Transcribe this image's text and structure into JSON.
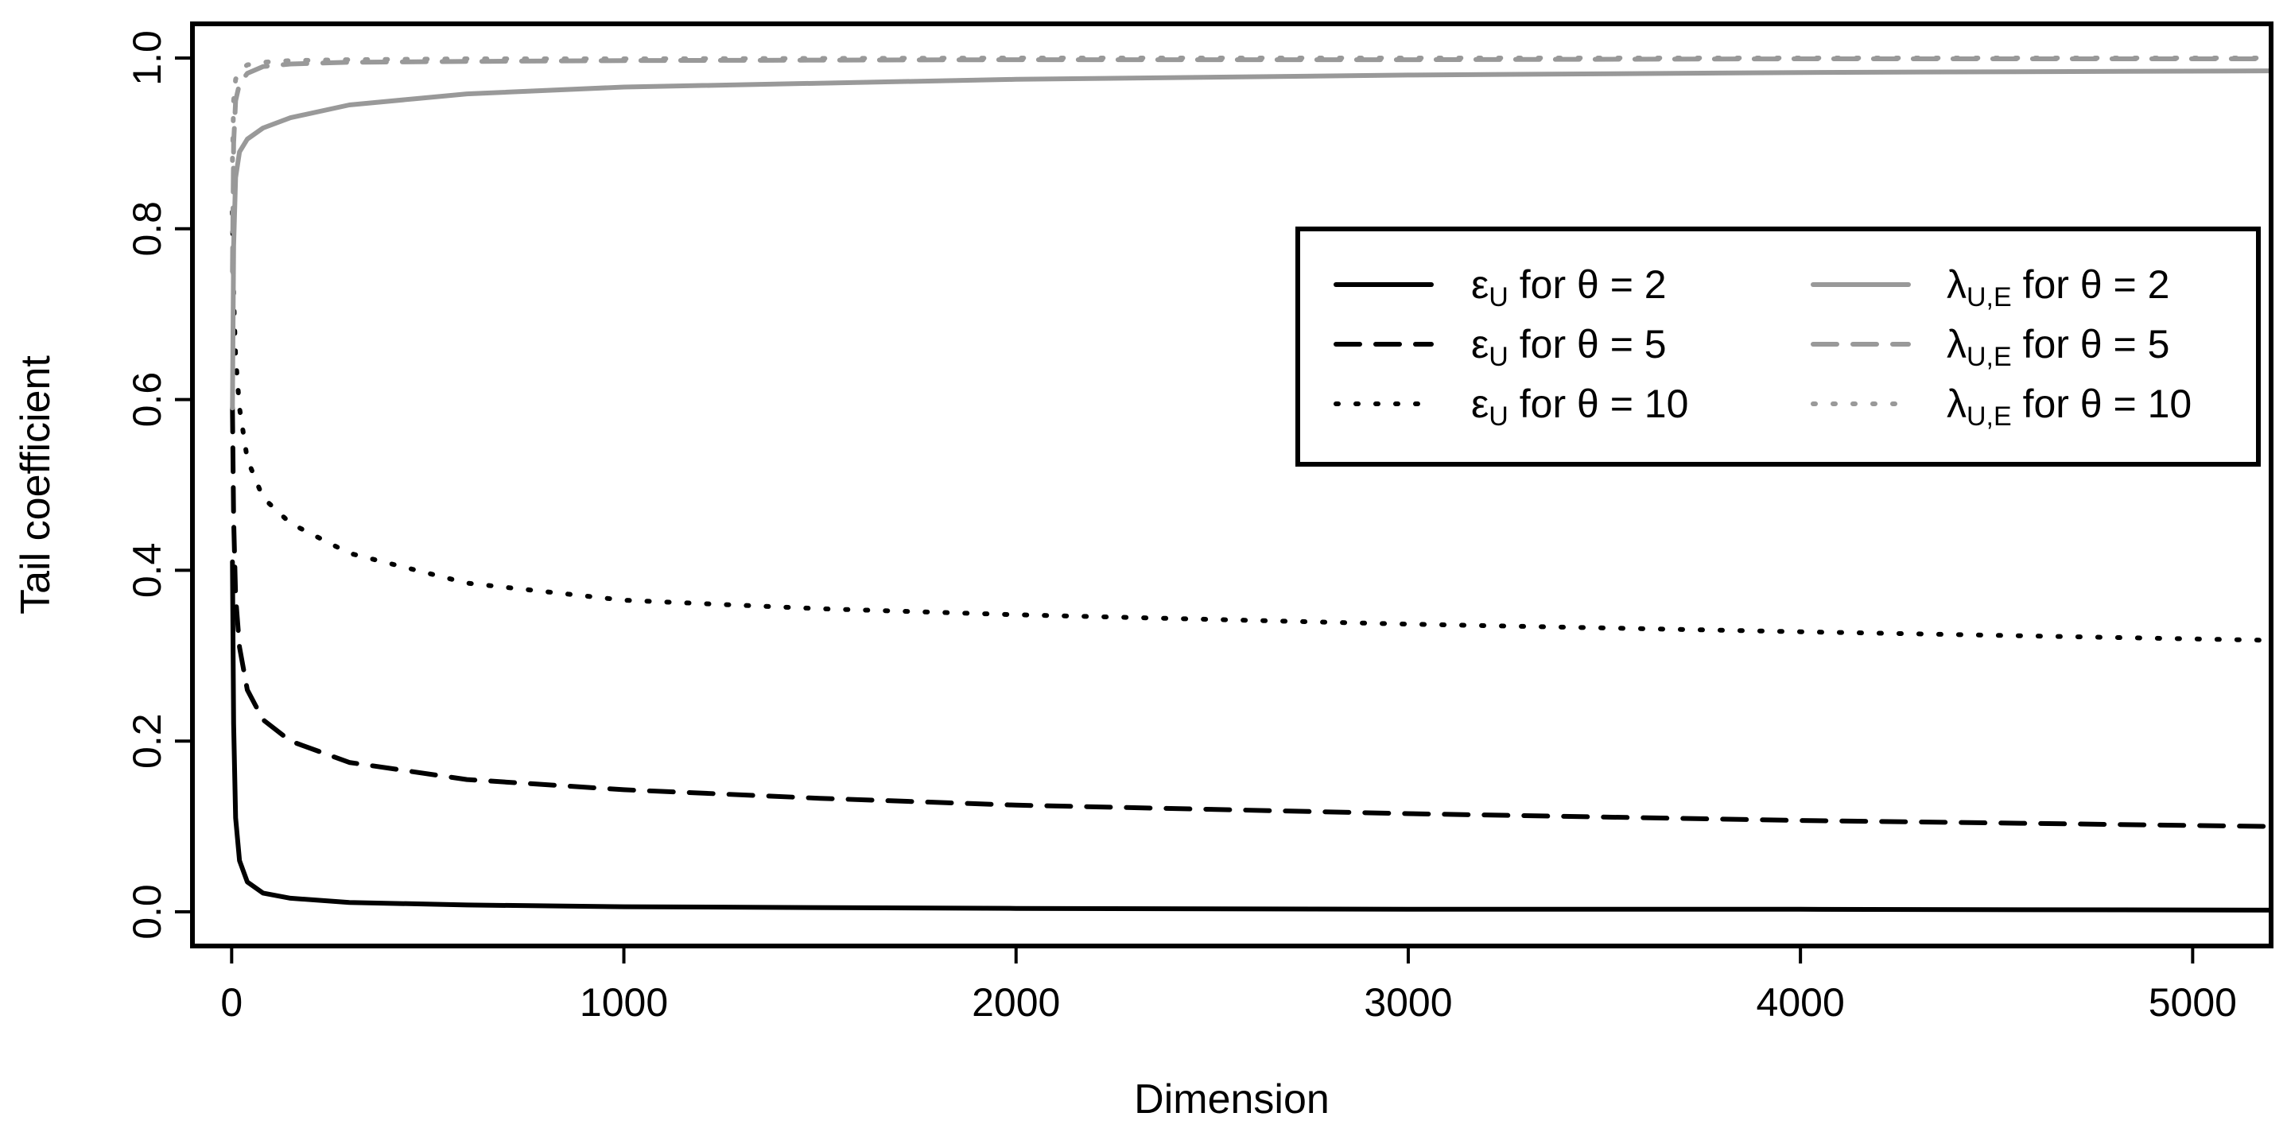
{
  "chart_data": {
    "type": "line",
    "title": "",
    "xlabel": "Dimension",
    "ylabel": "Tail coefficient",
    "xlim": [
      -100,
      5200
    ],
    "ylim": [
      -0.04,
      1.04
    ],
    "xticks": [
      0,
      1000,
      2000,
      3000,
      4000,
      5000
    ],
    "xtick_labels": [
      "0",
      "1000",
      "2000",
      "3000",
      "4000",
      "5000"
    ],
    "yticks": [
      0.0,
      0.2,
      0.4,
      0.6,
      0.8,
      1.0
    ],
    "ytick_labels": [
      "0.0",
      "0.2",
      "0.4",
      "0.6",
      "0.8",
      "1.0"
    ],
    "grid": false,
    "legend_placement": "center-right",
    "series": [
      {
        "name": "εU for θ = 2",
        "legend": {
          "symbol": "ε",
          "sub": "U",
          "rest": " for θ = 2"
        },
        "color": "#000000",
        "dash": "solid",
        "x": [
          2,
          5,
          10,
          20,
          40,
          80,
          150,
          300,
          600,
          1000,
          2000,
          3000,
          4000,
          5200
        ],
        "y": [
          0.41,
          0.22,
          0.11,
          0.06,
          0.035,
          0.022,
          0.016,
          0.011,
          0.008,
          0.006,
          0.004,
          0.003,
          0.003,
          0.002
        ]
      },
      {
        "name": "εU for θ = 5",
        "legend": {
          "symbol": "ε",
          "sub": "U",
          "rest": " for θ = 5"
        },
        "color": "#000000",
        "dash": "dashed",
        "x": [
          2,
          5,
          10,
          20,
          40,
          80,
          150,
          300,
          600,
          1000,
          1500,
          2000,
          3000,
          4000,
          5200
        ],
        "y": [
          0.59,
          0.46,
          0.37,
          0.31,
          0.26,
          0.225,
          0.2,
          0.175,
          0.155,
          0.143,
          0.133,
          0.125,
          0.115,
          0.107,
          0.1
        ]
      },
      {
        "name": "εU for θ = 10",
        "legend": {
          "symbol": "ε",
          "sub": "U",
          "rest": " for θ = 10"
        },
        "color": "#000000",
        "dash": "dotted",
        "x": [
          2,
          5,
          10,
          20,
          40,
          80,
          150,
          300,
          600,
          1000,
          1500,
          2000,
          3000,
          4000,
          5200
        ],
        "y": [
          0.82,
          0.72,
          0.65,
          0.59,
          0.53,
          0.485,
          0.455,
          0.42,
          0.385,
          0.365,
          0.355,
          0.348,
          0.337,
          0.328,
          0.318
        ]
      },
      {
        "name": "λU,E for θ = 2",
        "legend": {
          "symbol": "λ",
          "sub": "U,E",
          "rest": " for θ = 2"
        },
        "color": "#999999",
        "dash": "solid",
        "x": [
          2,
          5,
          10,
          20,
          40,
          80,
          150,
          300,
          600,
          1000,
          2000,
          3000,
          4000,
          5200
        ],
        "y": [
          0.59,
          0.78,
          0.86,
          0.89,
          0.905,
          0.918,
          0.93,
          0.945,
          0.958,
          0.966,
          0.975,
          0.98,
          0.983,
          0.985
        ]
      },
      {
        "name": "λU,E for θ = 5",
        "legend": {
          "symbol": "λ",
          "sub": "U,E",
          "rest": " for θ = 5"
        },
        "color": "#999999",
        "dash": "dashed",
        "x": [
          2,
          5,
          10,
          20,
          40,
          80,
          150,
          300,
          600,
          1000,
          2000,
          3000,
          4000,
          5200
        ],
        "y": [
          0.75,
          0.9,
          0.95,
          0.97,
          0.982,
          0.99,
          0.993,
          0.995,
          0.996,
          0.997,
          0.998,
          0.998,
          0.999,
          0.999
        ]
      },
      {
        "name": "λU,E for θ = 10",
        "legend": {
          "symbol": "λ",
          "sub": "U,E",
          "rest": " for θ = 10"
        },
        "color": "#999999",
        "dash": "dotted",
        "x": [
          2,
          5,
          10,
          20,
          40,
          80,
          150,
          300,
          600,
          1000,
          2000,
          3000,
          4000,
          5200
        ],
        "y": [
          0.88,
          0.95,
          0.975,
          0.985,
          0.992,
          0.995,
          0.997,
          0.998,
          0.999,
          0.999,
          1.0,
          1.0,
          1.0,
          1.0
        ]
      }
    ]
  }
}
